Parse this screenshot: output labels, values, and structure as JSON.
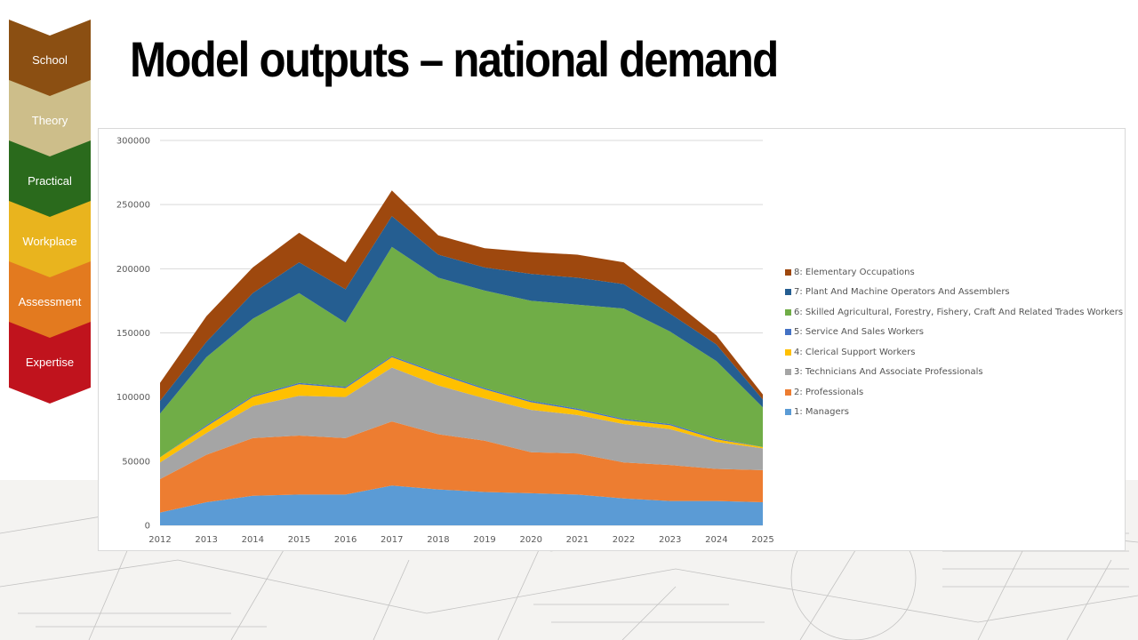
{
  "title": "Model outputs – national demand",
  "sidebar": {
    "items": [
      {
        "label": "School",
        "color": "#8B4F12"
      },
      {
        "label": "Theory",
        "color": "#CDBE8A"
      },
      {
        "label": "Practical",
        "color": "#2A6A1C"
      },
      {
        "label": "Workplace",
        "color": "#E9B41E"
      },
      {
        "label": "Assessment",
        "color": "#E37A1F"
      },
      {
        "label": "Expertise",
        "color": "#C0131D"
      }
    ]
  },
  "chart_data": {
    "type": "area",
    "stacked": true,
    "x": [
      2012,
      2013,
      2014,
      2015,
      2016,
      2017,
      2018,
      2019,
      2020,
      2021,
      2022,
      2023,
      2024,
      2025
    ],
    "ylim": [
      0,
      300000
    ],
    "yticks": [
      0,
      50000,
      100000,
      150000,
      200000,
      250000,
      300000
    ],
    "grid": true,
    "legend_position": "right",
    "series": [
      {
        "name": "1: Managers",
        "color": "#5B9BD5",
        "values": [
          10000,
          18000,
          23000,
          24000,
          24000,
          31000,
          28000,
          26000,
          25000,
          24000,
          21000,
          19000,
          19000,
          18000
        ]
      },
      {
        "name": "2: Professionals",
        "color": "#ED7D31",
        "values": [
          26000,
          37000,
          45000,
          46000,
          44000,
          50000,
          43000,
          40000,
          32000,
          32000,
          28000,
          28000,
          25000,
          25000
        ]
      },
      {
        "name": "3: Technicians And Associate Professionals",
        "color": "#A5A5A5",
        "values": [
          13000,
          17000,
          25000,
          31000,
          32000,
          42000,
          38000,
          33000,
          33000,
          30000,
          30000,
          28000,
          21000,
          17000
        ]
      },
      {
        "name": "4: Clerical Support Workers",
        "color": "#FFC000",
        "values": [
          4000,
          5000,
          7000,
          9000,
          7000,
          8000,
          9000,
          7000,
          6000,
          4000,
          3000,
          3000,
          2000,
          1000
        ]
      },
      {
        "name": "5: Service And Sales Workers",
        "color": "#4472C4",
        "values": [
          0,
          1000,
          1000,
          1000,
          1000,
          1000,
          1000,
          1000,
          1000,
          1000,
          1000,
          1000,
          1000,
          0
        ]
      },
      {
        "name": "6: Skilled Agricultural, Forestry, Fishery, Craft And Related Trades Workers",
        "color": "#70AD47",
        "values": [
          34000,
          53000,
          60000,
          70000,
          50000,
          85000,
          74000,
          76000,
          78000,
          81000,
          86000,
          72000,
          60000,
          31000
        ]
      },
      {
        "name": "7: Plant And Machine Operators And Assemblers",
        "color": "#255E91",
        "values": [
          10000,
          12000,
          20000,
          24000,
          26000,
          24000,
          18000,
          18000,
          21000,
          21000,
          19000,
          14000,
          13000,
          6000
        ]
      },
      {
        "name": "8: Elementary Occupations",
        "color": "#9E480E",
        "values": [
          14000,
          20000,
          20000,
          23000,
          21000,
          20000,
          15000,
          15000,
          17000,
          18000,
          17000,
          12000,
          7000,
          4000
        ]
      }
    ]
  }
}
